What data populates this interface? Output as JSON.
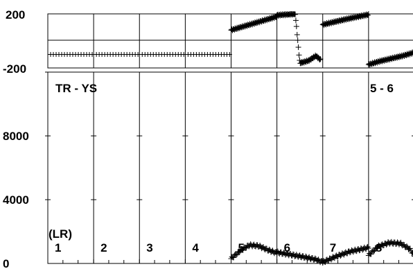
{
  "chart_data": [
    {
      "type": "scatter",
      "title": "",
      "xlabel": "",
      "ylabel": "",
      "ylim": [
        -200,
        200
      ],
      "ytick_labels": [
        "200",
        "-200"
      ],
      "grid": true,
      "panels": [
        "1",
        "2",
        "3",
        "4",
        "5",
        "6",
        "7",
        "8"
      ],
      "series": [
        {
          "panel": "1",
          "points": [
            [
              0.02,
              -100
            ],
            [
              0.5,
              -100
            ],
            [
              0.98,
              -100
            ]
          ]
        },
        {
          "panel": "2",
          "points": [
            [
              0.02,
              -100
            ],
            [
              0.5,
              -100
            ],
            [
              0.98,
              -100
            ]
          ]
        },
        {
          "panel": "3",
          "points": [
            [
              0.02,
              -100
            ],
            [
              0.5,
              -100
            ],
            [
              0.98,
              -100
            ]
          ]
        },
        {
          "panel": "4",
          "points": [
            [
              0.02,
              -100
            ],
            [
              0.5,
              -100
            ],
            [
              0.98,
              -100
            ]
          ]
        },
        {
          "panel": "5",
          "points": [
            [
              0.0,
              80
            ],
            [
              0.25,
              105
            ],
            [
              0.5,
              130
            ],
            [
              0.75,
              155
            ],
            [
              1.0,
              180
            ]
          ]
        },
        {
          "panel": "6",
          "points": [
            [
              0.0,
              190
            ],
            [
              0.2,
              195
            ],
            [
              0.4,
              200
            ],
            [
              0.5,
              -165
            ],
            [
              0.7,
              -145
            ],
            [
              0.85,
              -110
            ],
            [
              0.95,
              -140
            ]
          ]
        },
        {
          "panel": "7",
          "points": [
            [
              0.0,
              120
            ],
            [
              0.25,
              140
            ],
            [
              0.5,
              160
            ],
            [
              0.75,
              178
            ],
            [
              1.0,
              195
            ]
          ]
        },
        {
          "panel": "8",
          "points": [
            [
              0.0,
              -175
            ],
            [
              0.25,
              -150
            ],
            [
              0.5,
              -130
            ],
            [
              0.75,
              -110
            ],
            [
              1.0,
              -85
            ]
          ]
        }
      ]
    },
    {
      "type": "scatter",
      "title": "",
      "xlabel": "",
      "ylabel": "",
      "ylim": [
        0,
        12000
      ],
      "ytick_labels": [
        "8000",
        "4000",
        "0"
      ],
      "yticks": [
        8000,
        4000,
        0
      ],
      "grid": false,
      "annotations": {
        "left_title": "TR - YS",
        "right_title": "5 - 6",
        "unit_label": "(LR)"
      },
      "panels": [
        "1",
        "2",
        "3",
        "4",
        "5",
        "6",
        "7",
        "8"
      ],
      "series": [
        {
          "panel": "5",
          "points": [
            [
              0.0,
              300
            ],
            [
              0.2,
              800
            ],
            [
              0.4,
              1150
            ],
            [
              0.6,
              1100
            ],
            [
              0.8,
              850
            ],
            [
              1.0,
              650
            ]
          ]
        },
        {
          "panel": "6",
          "points": [
            [
              0.0,
              700
            ],
            [
              0.3,
              550
            ],
            [
              0.6,
              400
            ],
            [
              0.85,
              250
            ],
            [
              1.0,
              80
            ]
          ]
        },
        {
          "panel": "7",
          "points": [
            [
              0.0,
              80
            ],
            [
              0.3,
              450
            ],
            [
              0.6,
              750
            ],
            [
              0.85,
              900
            ],
            [
              1.0,
              1000
            ]
          ]
        },
        {
          "panel": "8",
          "points": [
            [
              0.0,
              500
            ],
            [
              0.2,
              1050
            ],
            [
              0.45,
              1300
            ],
            [
              0.7,
              1250
            ],
            [
              0.9,
              900
            ],
            [
              1.0,
              500
            ]
          ]
        }
      ]
    }
  ]
}
